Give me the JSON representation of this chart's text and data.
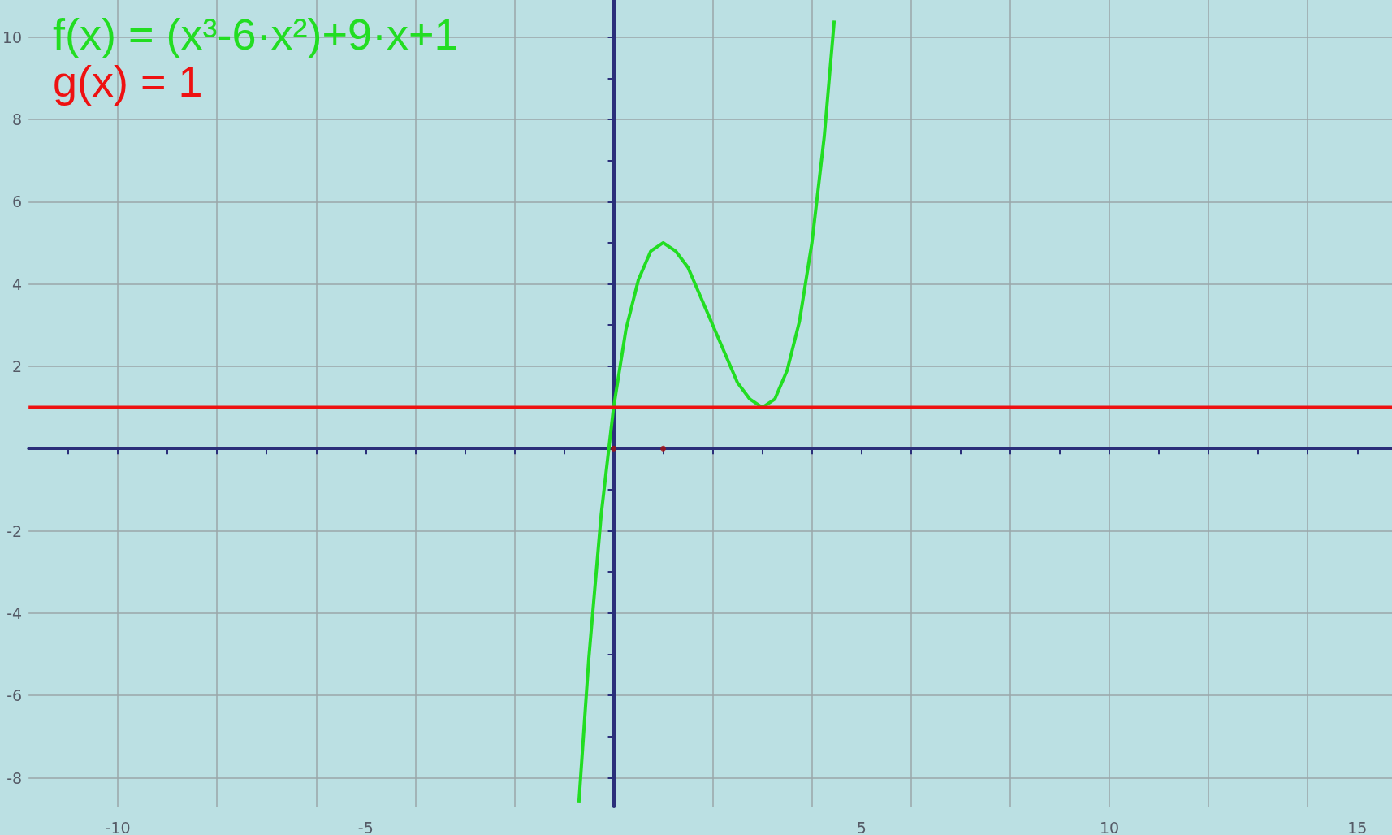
{
  "chart_data": {
    "type": "line",
    "legend": "top left",
    "grid": true,
    "xlim": [
      -11.8,
      15.7
    ],
    "ylim": [
      -8.7,
      10.9
    ],
    "xticks": [
      {
        "value": -11,
        "label": null
      },
      -10,
      {
        "value": -9,
        "label": null
      },
      {
        "value": -8,
        "label": null
      },
      {
        "value": -7,
        "label": null
      },
      {
        "value": -6,
        "label": null
      },
      -5,
      {
        "value": -4,
        "label": null
      },
      {
        "value": -3,
        "label": null
      },
      {
        "value": -2,
        "label": null
      },
      {
        "value": -1,
        "label": null
      },
      {
        "value": 0,
        "label": null
      },
      {
        "value": 1,
        "label": null
      },
      {
        "value": 2,
        "label": null
      },
      {
        "value": 3,
        "label": null
      },
      {
        "value": 4,
        "label": null
      },
      5,
      {
        "value": 6,
        "label": null
      },
      {
        "value": 7,
        "label": null
      },
      {
        "value": 8,
        "label": null
      },
      {
        "value": 9,
        "label": null
      },
      10,
      {
        "value": 11,
        "label": null
      },
      {
        "value": 12,
        "label": null
      },
      {
        "value": 13,
        "label": null
      },
      {
        "value": 14,
        "label": null
      },
      15
    ],
    "yticks": [
      -8,
      {
        "value": -7,
        "label": null
      },
      -6,
      {
        "value": -5,
        "label": null
      },
      -4,
      {
        "value": -3,
        "label": null
      },
      -2,
      {
        "value": -1,
        "label": null
      },
      {
        "value": 0,
        "label": null
      },
      {
        "value": 1,
        "label": null
      },
      2,
      {
        "value": 3,
        "label": null
      },
      4,
      {
        "value": 5,
        "label": null
      },
      6,
      {
        "value": 7,
        "label": null
      },
      8,
      {
        "value": 9,
        "label": null
      },
      10
    ],
    "series": [
      {
        "name": "f(x) = (x³-6·x²)+9·x+1",
        "color": "#22dd22",
        "x": [
          -0.7,
          -0.5,
          -0.25,
          0,
          0.25,
          0.5,
          0.75,
          1,
          1.25,
          1.5,
          1.75,
          2,
          2.25,
          2.5,
          2.75,
          3,
          3.25,
          3.5,
          3.75,
          4,
          4.25,
          4.45
        ],
        "values": [
          -8.6,
          -5.1,
          -1.6,
          1,
          2.9,
          4.1,
          4.8,
          5,
          4.8,
          4.4,
          3.7,
          3,
          2.3,
          1.6,
          1.2,
          1,
          1.2,
          1.9,
          3.1,
          5,
          7.6,
          10.4
        ]
      },
      {
        "name": "g(x) = 1",
        "color": "#ee1111",
        "x": [
          -11.8,
          15.7
        ],
        "values": [
          1,
          1
        ]
      },
      {
        "type": "scatter",
        "color": "#aa1111",
        "x": [
          0,
          1
        ],
        "values": [
          0,
          0
        ]
      }
    ]
  }
}
